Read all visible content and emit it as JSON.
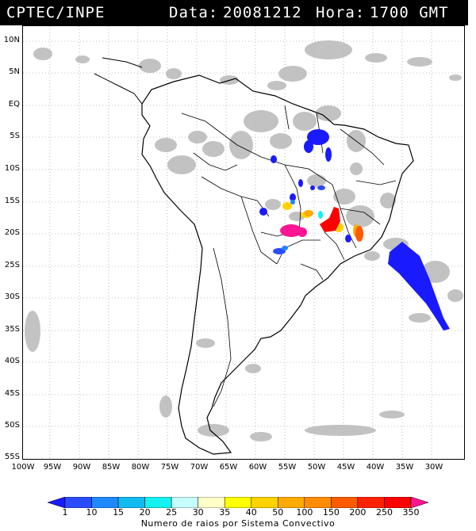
{
  "header": {
    "source": "CPTEC/INPE",
    "date_label": "Data:",
    "date": "20081212",
    "time_label": "Hora:",
    "time": "1700 GMT"
  },
  "lat_labels": [
    "10N",
    "5N",
    "EQ",
    "5S",
    "10S",
    "15S",
    "20S",
    "25S",
    "30S",
    "35S",
    "40S",
    "45S",
    "50S",
    "55S"
  ],
  "lon_labels": [
    "100W",
    "95W",
    "90W",
    "85W",
    "80W",
    "75W",
    "70W",
    "65W",
    "60W",
    "55W",
    "50W",
    "45W",
    "40W",
    "35W",
    "30W"
  ],
  "legend": {
    "caption": "Numero de raios por Sistema Convectivo",
    "ticks": [
      "1",
      "10",
      "15",
      "20",
      "25",
      "30",
      "35",
      "40",
      "50",
      "100",
      "150",
      "200",
      "250",
      "350"
    ],
    "colors": [
      "#1a1aff",
      "#2a4cff",
      "#1e88ff",
      "#11bbf0",
      "#15f0f0",
      "#c8ffff",
      "#ffffc8",
      "#ffff00",
      "#ffd200",
      "#ffaa00",
      "#ff8c00",
      "#ff5a00",
      "#ff2200",
      "#ff0000",
      "#ff1493"
    ]
  }
}
